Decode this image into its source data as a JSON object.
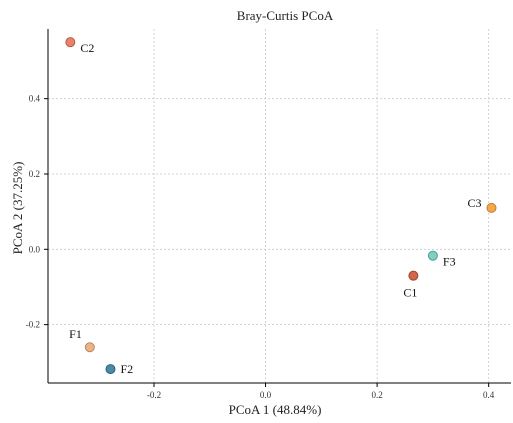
{
  "chart_data": {
    "type": "scatter",
    "title": "Bray-Curtis PCoA",
    "xlabel": "PCoA 1 (48.84%)",
    "ylabel": "PCoA 2 (37.25%)",
    "xlim": [
      -0.39,
      0.44
    ],
    "ylim": [
      -0.355,
      0.585
    ],
    "x_ticks": [
      -0.2,
      0.0,
      0.2,
      0.4
    ],
    "x_tick_labels": [
      "-0.2",
      "0.0",
      "0.2",
      "0.4"
    ],
    "y_ticks": [
      -0.2,
      0.0,
      0.2,
      0.4
    ],
    "y_tick_labels": [
      "-0.2",
      "0.0",
      "0.2",
      "0.4"
    ],
    "grid": true,
    "points": [
      {
        "label": "C2",
        "x": -0.35,
        "y": 0.55,
        "color": "#e8826b",
        "edge": "#b85c48",
        "label_pos": "right-below"
      },
      {
        "label": "C3",
        "x": 0.405,
        "y": 0.11,
        "color": "#f2a94c",
        "edge": "#c07c2c",
        "label_pos": "left"
      },
      {
        "label": "F3",
        "x": 0.3,
        "y": -0.017,
        "color": "#7fcfc4",
        "edge": "#4c9d93",
        "label_pos": "right-below"
      },
      {
        "label": "C1",
        "x": 0.265,
        "y": -0.07,
        "color": "#d2664c",
        "edge": "#9d4432",
        "label_pos": "below"
      },
      {
        "label": "F1",
        "x": -0.315,
        "y": -0.26,
        "color": "#eab487",
        "edge": "#b88660",
        "label_pos": "left-above"
      },
      {
        "label": "F2",
        "x": -0.278,
        "y": -0.318,
        "color": "#4a8aa6",
        "edge": "#2f6279",
        "label_pos": "right"
      }
    ]
  }
}
